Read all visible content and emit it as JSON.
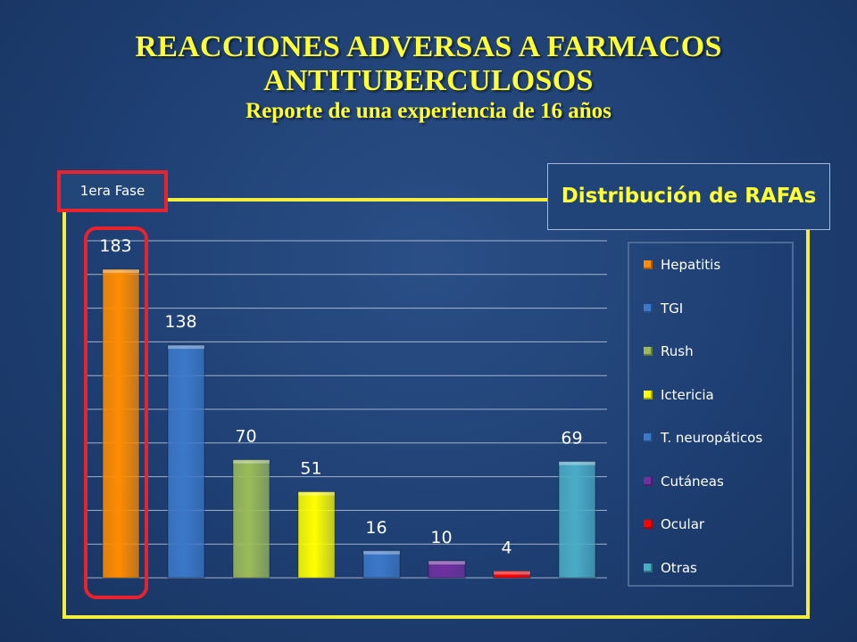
{
  "title": {
    "line1": "REACCIONES ADVERSAS A FARMACOS",
    "line2": "ANTITUBERCULOSOS",
    "subtitle": "Reporte de una experiencia de 16 años"
  },
  "phase_label": "1era Fase",
  "chart_title": "Distribución de RAFAs",
  "chart_data": {
    "type": "bar",
    "title": "Distribución de RAFAs",
    "categories": [
      "Hepatitis",
      "TGI",
      "Rush",
      "Ictericia",
      "T. neuropáticos",
      "Cutáneas",
      "Ocular",
      "Otras"
    ],
    "values": [
      183,
      138,
      70,
      51,
      16,
      10,
      4,
      69
    ],
    "data_labels": [
      "183",
      "138",
      "70",
      "51",
      "16",
      "10",
      "4",
      "69"
    ],
    "colors": [
      "#ff8c00",
      "#3c78c8",
      "#9bbb59",
      "#ffff00",
      "#3c78c8",
      "#7030a0",
      "#ff0000",
      "#4bacc6"
    ],
    "ylim": [
      0,
      200
    ],
    "grid": true,
    "legend_position": "right",
    "highlighted_category": "Hepatitis"
  },
  "colors": {
    "title": "#ffff33",
    "frame": "#f3ee3e",
    "highlight": "#e8232e",
    "background": "#1e3f73"
  }
}
